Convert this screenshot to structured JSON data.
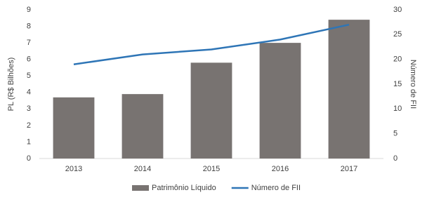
{
  "chart_data": {
    "type": "combo",
    "categories": [
      "2013",
      "2014",
      "2015",
      "2016",
      "2017"
    ],
    "series": [
      {
        "name": "Patrimônio Líquido",
        "type": "bar",
        "color": "#787371",
        "values": [
          3.7,
          3.9,
          5.8,
          7.0,
          8.4
        ]
      },
      {
        "name": "Número de FII",
        "type": "line",
        "axis": "y2",
        "color": "#2e75b6",
        "values": [
          19,
          21,
          22,
          24,
          27
        ]
      }
    ],
    "ylabel": "PL (R$ Bilhões)",
    "y2label": "Número de FII",
    "ylim": [
      0,
      9
    ],
    "yticks": [
      0,
      1,
      2,
      3,
      4,
      5,
      6,
      7,
      8,
      9
    ],
    "y2lim": [
      0,
      30
    ],
    "y2ticks": [
      0,
      5,
      10,
      15,
      20,
      25,
      30
    ],
    "legend": "bottom"
  }
}
